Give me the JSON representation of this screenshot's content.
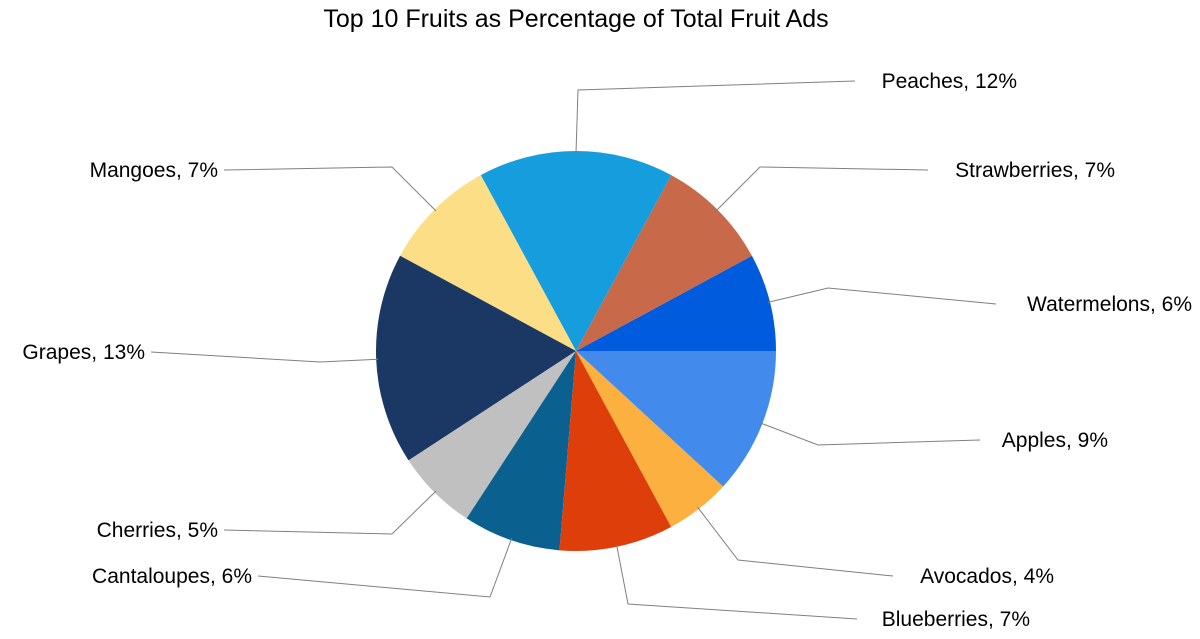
{
  "chart_data": {
    "type": "pie",
    "title": "Top 10 Fruits as Percentage of Total Fruit Ads",
    "slices": [
      {
        "label": "Watermelons, 6%",
        "value": 6,
        "color": "#005CDC"
      },
      {
        "label": "Strawberries, 7%",
        "value": 7,
        "color": "#C8694A"
      },
      {
        "label": "Peaches, 12%",
        "value": 12,
        "color": "#169DDD"
      },
      {
        "label": "Mangoes, 7%",
        "value": 7,
        "color": "#FCDE86"
      },
      {
        "label": "Grapes, 13%",
        "value": 13,
        "color": "#1B3865"
      },
      {
        "label": "Cherries, 5%",
        "value": 5,
        "color": "#C0C0C0"
      },
      {
        "label": "Cantaloupes, 6%",
        "value": 6,
        "color": "#0A6190"
      },
      {
        "label": "Blueberries, 7%",
        "value": 7,
        "color": "#DD3E0A"
      },
      {
        "label": "Avocados, 4%",
        "value": 4,
        "color": "#FBB040"
      },
      {
        "label": "Apples, 9%",
        "value": 9,
        "color": "#428BEC"
      }
    ],
    "legend": "none",
    "label_placement": "outside with leader lines"
  }
}
